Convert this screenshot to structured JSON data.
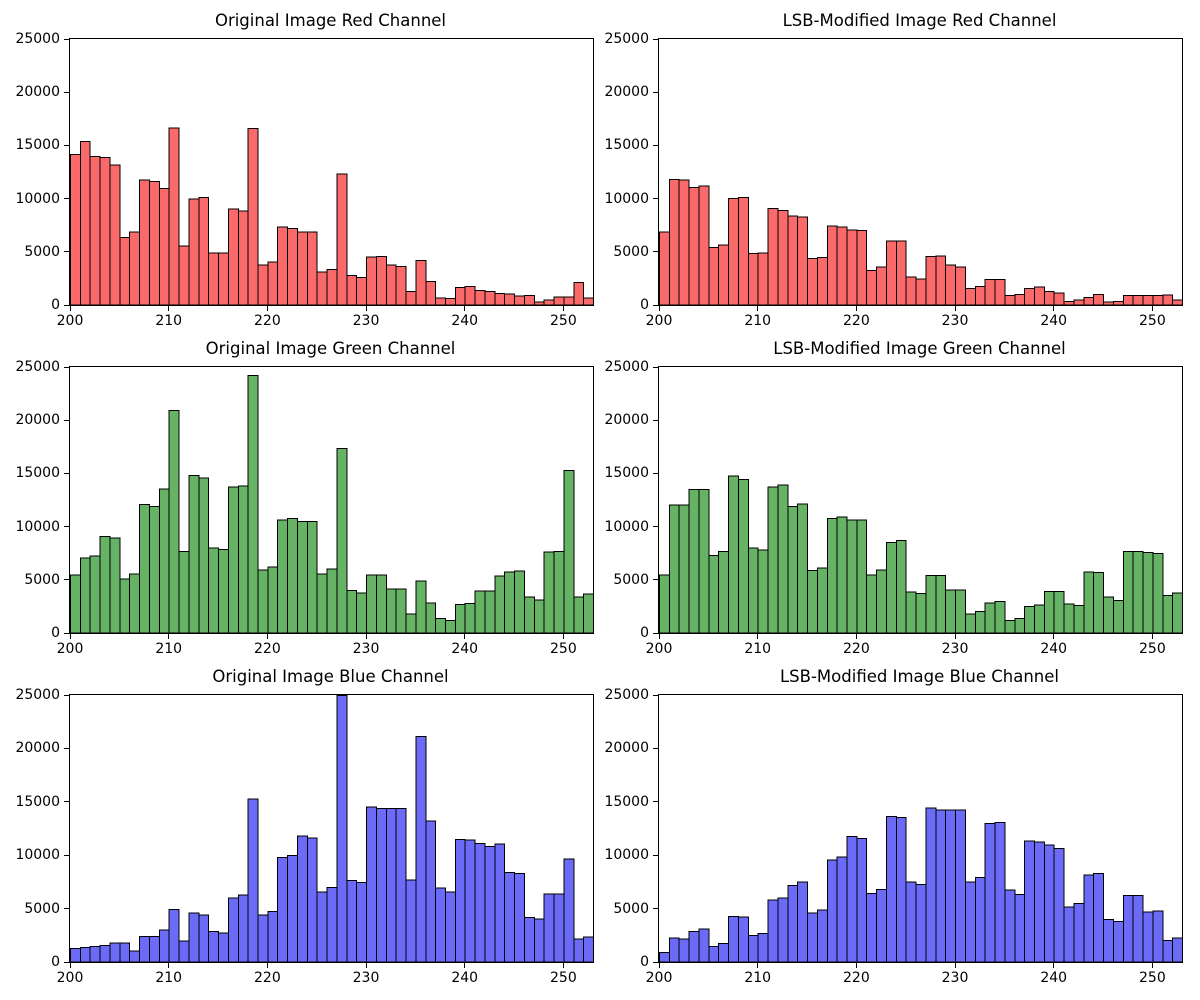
{
  "figure": {
    "background": "#ffffff",
    "rows": 3,
    "cols": 2
  },
  "chart_data": [
    {
      "type": "bar",
      "title": "Original Image Red Channel",
      "fill": "#fb6a6a",
      "edge": "#000000",
      "bin_start": 200,
      "bin_width": 1,
      "xlim": [
        200,
        253
      ],
      "ylim": [
        0,
        25000
      ],
      "xticks": [
        200,
        210,
        220,
        230,
        240,
        250
      ],
      "yticks": [
        0,
        5000,
        10000,
        15000,
        20000,
        25000
      ],
      "grid": false,
      "values": [
        14200,
        15400,
        14000,
        13900,
        13200,
        6400,
        6900,
        11800,
        11650,
        11000,
        16700,
        5600,
        10000,
        10150,
        4950,
        4950,
        9050,
        8900,
        16650,
        3800,
        4100,
        7400,
        7250,
        6900,
        6900,
        3150,
        3400,
        12350,
        2800,
        2650,
        4550,
        4600,
        3800,
        3650,
        1300,
        4250,
        2250,
        700,
        650,
        1700,
        1800,
        1400,
        1300,
        1150,
        1100,
        900,
        950,
        350,
        500,
        800,
        800,
        2150,
        700
      ]
    },
    {
      "type": "bar",
      "title": "LSB-Modified Image Red Channel",
      "fill": "#fb6a6a",
      "edge": "#000000",
      "bin_start": 200,
      "bin_width": 1,
      "xlim": [
        200,
        253
      ],
      "ylim": [
        0,
        25000
      ],
      "xticks": [
        200,
        210,
        220,
        230,
        240,
        250
      ],
      "yticks": [
        0,
        5000,
        10000,
        15000,
        20000,
        25000
      ],
      "grid": false,
      "values": [
        6900,
        11850,
        11800,
        11100,
        11250,
        5450,
        5700,
        10050,
        10150,
        4900,
        4950,
        9100,
        8950,
        8400,
        8300,
        4400,
        4500,
        7450,
        7400,
        7100,
        7050,
        3300,
        3600,
        6050,
        6050,
        2680,
        2480,
        4590,
        4650,
        3820,
        3630,
        1590,
        1780,
        2450,
        2450,
        950,
        1020,
        1590,
        1720,
        1300,
        1180,
        380,
        540,
        770,
        1020,
        320,
        380,
        930,
        930,
        930,
        930,
        990,
        540
      ]
    },
    {
      "type": "bar",
      "title": "Original Image Green Channel",
      "fill": "#66b366",
      "edge": "#000000",
      "bin_start": 200,
      "bin_width": 1,
      "xlim": [
        200,
        253
      ],
      "ylim": [
        0,
        25000
      ],
      "xticks": [
        200,
        210,
        220,
        230,
        240,
        250
      ],
      "yticks": [
        0,
        5000,
        10000,
        15000,
        20000,
        25000
      ],
      "grid": false,
      "values": [
        5520,
        7110,
        7270,
        9110,
        8980,
        5110,
        5580,
        12110,
        11950,
        13580,
        20950,
        7700,
        14830,
        14610,
        8020,
        7890,
        13770,
        13860,
        24230,
        5980,
        6230,
        10670,
        10830,
        10550,
        10550,
        5580,
        6050,
        17390,
        4020,
        3830,
        5520,
        5520,
        4200,
        4200,
        1830,
        4950,
        2890,
        1390,
        1230,
        2730,
        2800,
        3980,
        3980,
        5390,
        5800,
        5860,
        3420,
        3140,
        7640,
        7700,
        15300,
        3450,
        3700
      ]
    },
    {
      "type": "bar",
      "title": "LSB-Modified Image Green Channel",
      "fill": "#66b366",
      "edge": "#000000",
      "bin_start": 200,
      "bin_width": 1,
      "xlim": [
        200,
        253
      ],
      "ylim": [
        0,
        25000
      ],
      "xticks": [
        200,
        210,
        220,
        230,
        240,
        250
      ],
      "yticks": [
        0,
        5000,
        10000,
        15000,
        20000,
        25000
      ],
      "grid": false,
      "values": [
        5500,
        12100,
        12100,
        13530,
        13530,
        7350,
        7690,
        14820,
        14480,
        8040,
        7850,
        13750,
        13940,
        11930,
        12150,
        5930,
        6150,
        10800,
        10960,
        10650,
        10650,
        5500,
        5970,
        8540,
        8760,
        3920,
        3770,
        5450,
        5450,
        4110,
        4110,
        1830,
        2050,
        2890,
        3020,
        1230,
        1390,
        2550,
        2700,
        3950,
        3950,
        2770,
        2610,
        5800,
        5730,
        3450,
        3080,
        7700,
        7700,
        7610,
        7520,
        3550,
        3830
      ]
    },
    {
      "type": "bar",
      "title": "Original Image Blue Channel",
      "fill": "#6b6bf8",
      "edge": "#000000",
      "bin_start": 200,
      "bin_width": 1,
      "xlim": [
        200,
        253
      ],
      "ylim": [
        0,
        25000
      ],
      "xticks": [
        200,
        210,
        220,
        230,
        240,
        250
      ],
      "yticks": [
        0,
        5000,
        10000,
        15000,
        20000,
        25000
      ],
      "grid": false,
      "values": [
        1310,
        1400,
        1500,
        1590,
        1840,
        1840,
        1100,
        2440,
        2440,
        3060,
        4970,
        2000,
        4630,
        4470,
        2880,
        2750,
        6030,
        6310,
        15290,
        4470,
        4780,
        9840,
        10000,
        11860,
        11640,
        6610,
        7020,
        25100,
        7700,
        7490,
        14570,
        14410,
        14410,
        14410,
        7710,
        21150,
        13260,
        6960,
        6610,
        11540,
        11450,
        11140,
        10860,
        11110,
        8420,
        8330,
        4210,
        4060,
        6400,
        6400,
        9670,
        2180,
        2400
      ]
    },
    {
      "type": "bar",
      "title": "LSB-Modified Image Blue Channel",
      "fill": "#6b6bf8",
      "edge": "#000000",
      "bin_start": 200,
      "bin_width": 1,
      "xlim": [
        200,
        253
      ],
      "ylim": [
        0,
        25000
      ],
      "xticks": [
        200,
        210,
        220,
        230,
        240,
        250
      ],
      "yticks": [
        0,
        5000,
        10000,
        15000,
        20000,
        25000
      ],
      "grid": false,
      "values": [
        940,
        2290,
        2200,
        2920,
        3140,
        1510,
        1760,
        4330,
        4240,
        2540,
        2700,
        5840,
        6060,
        7220,
        7540,
        4650,
        4900,
        9610,
        9890,
        11810,
        11620,
        6470,
        6850,
        13690,
        13600,
        7540,
        7320,
        14480,
        14290,
        14290,
        14290,
        7540,
        7940,
        13000,
        13090,
        6780,
        6370,
        11400,
        11300,
        10990,
        10680,
        5180,
        5530,
        8200,
        8350,
        4020,
        3830,
        6280,
        6280,
        4710,
        4800,
        2070,
        2290
      ]
    }
  ]
}
